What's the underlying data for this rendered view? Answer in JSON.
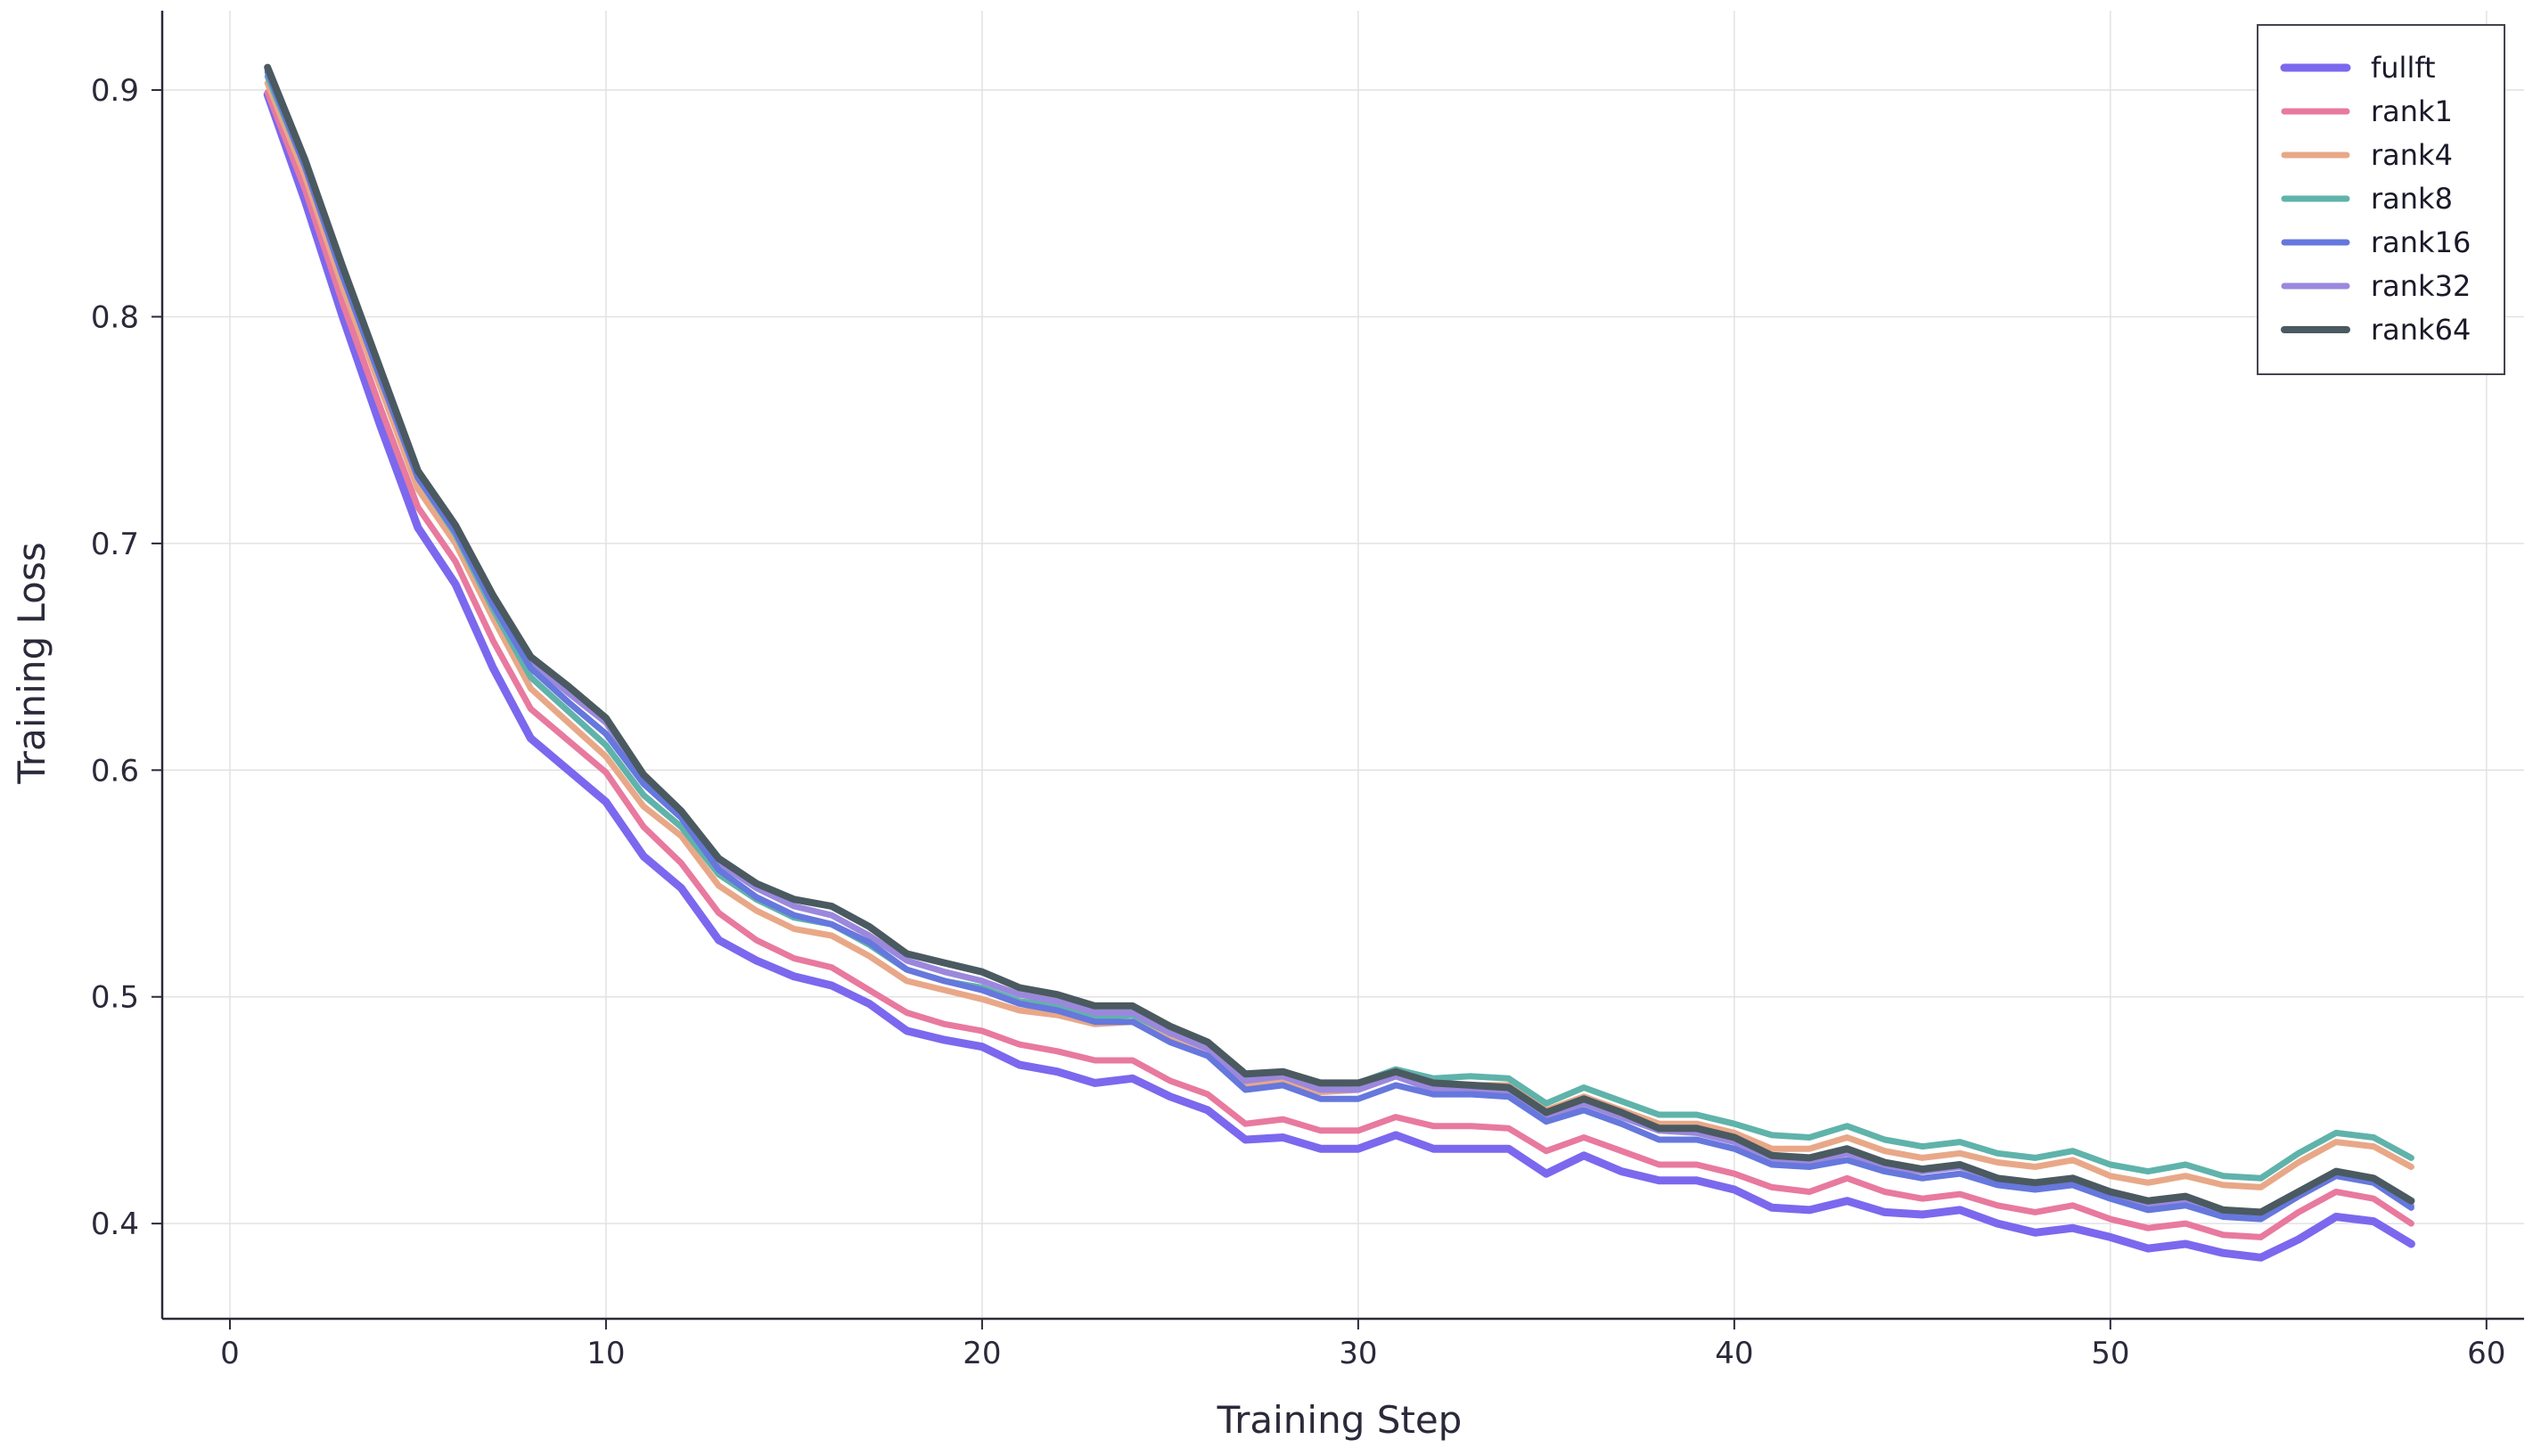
{
  "chart_data": {
    "type": "line",
    "title": "",
    "xlabel": "Training Step",
    "ylabel": "Training Loss",
    "xlim": [
      -1.8,
      61
    ],
    "ylim": [
      0.358,
      0.935
    ],
    "xticks": [
      0,
      10,
      20,
      30,
      40,
      50,
      60
    ],
    "yticks": [
      0.4,
      0.5,
      0.6,
      0.7,
      0.8,
      0.9
    ],
    "x": [
      1,
      2,
      3,
      4,
      5,
      6,
      7,
      8,
      9,
      10,
      11,
      12,
      13,
      14,
      15,
      16,
      17,
      18,
      19,
      20,
      21,
      22,
      23,
      24,
      25,
      26,
      27,
      28,
      29,
      30,
      31,
      32,
      33,
      34,
      35,
      36,
      37,
      38,
      39,
      40,
      41,
      42,
      43,
      44,
      45,
      46,
      47,
      48,
      49,
      50,
      51,
      52,
      53,
      54,
      55,
      56,
      57,
      58
    ],
    "grid": true,
    "legend_position": "top-right",
    "series": [
      {
        "name": "fullft",
        "color": "#7b68ee",
        "values": [
          0.898,
          0.851,
          0.8,
          0.752,
          0.707,
          0.682,
          0.645,
          0.614,
          0.6,
          0.586,
          0.562,
          0.548,
          0.525,
          0.516,
          0.509,
          0.505,
          0.497,
          0.485,
          0.481,
          0.478,
          0.47,
          0.467,
          0.462,
          0.464,
          0.456,
          0.45,
          0.437,
          0.438,
          0.433,
          0.433,
          0.439,
          0.433,
          0.433,
          0.433,
          0.422,
          0.43,
          0.423,
          0.419,
          0.419,
          0.415,
          0.407,
          0.406,
          0.41,
          0.405,
          0.404,
          0.406,
          0.4,
          0.396,
          0.398,
          0.394,
          0.389,
          0.391,
          0.387,
          0.385,
          0.393,
          0.403,
          0.401,
          0.391
        ]
      },
      {
        "name": "rank1",
        "color": "#e8799f",
        "values": [
          0.899,
          0.856,
          0.806,
          0.76,
          0.716,
          0.692,
          0.657,
          0.627,
          0.613,
          0.599,
          0.575,
          0.559,
          0.537,
          0.525,
          0.517,
          0.513,
          0.503,
          0.493,
          0.488,
          0.485,
          0.479,
          0.476,
          0.472,
          0.472,
          0.463,
          0.457,
          0.444,
          0.446,
          0.441,
          0.441,
          0.447,
          0.443,
          0.443,
          0.442,
          0.432,
          0.438,
          0.432,
          0.426,
          0.426,
          0.422,
          0.416,
          0.414,
          0.42,
          0.414,
          0.411,
          0.413,
          0.408,
          0.405,
          0.408,
          0.402,
          0.398,
          0.4,
          0.395,
          0.394,
          0.405,
          0.414,
          0.411,
          0.4
        ]
      },
      {
        "name": "rank4",
        "color": "#e8a888",
        "values": [
          0.903,
          0.862,
          0.813,
          0.769,
          0.724,
          0.7,
          0.667,
          0.636,
          0.621,
          0.606,
          0.584,
          0.571,
          0.549,
          0.538,
          0.53,
          0.527,
          0.518,
          0.507,
          0.503,
          0.499,
          0.494,
          0.492,
          0.488,
          0.489,
          0.481,
          0.474,
          0.461,
          0.463,
          0.458,
          0.459,
          0.465,
          0.46,
          0.461,
          0.461,
          0.45,
          0.456,
          0.45,
          0.444,
          0.444,
          0.44,
          0.433,
          0.433,
          0.438,
          0.432,
          0.429,
          0.431,
          0.427,
          0.425,
          0.428,
          0.421,
          0.418,
          0.421,
          0.417,
          0.416,
          0.427,
          0.436,
          0.434,
          0.425
        ]
      },
      {
        "name": "rank8",
        "color": "#5fb3aa",
        "values": [
          0.906,
          0.866,
          0.818,
          0.773,
          0.729,
          0.704,
          0.671,
          0.641,
          0.626,
          0.611,
          0.589,
          0.575,
          0.554,
          0.543,
          0.535,
          0.532,
          0.523,
          0.512,
          0.507,
          0.504,
          0.498,
          0.496,
          0.491,
          0.492,
          0.484,
          0.478,
          0.464,
          0.466,
          0.461,
          0.462,
          0.468,
          0.464,
          0.465,
          0.464,
          0.453,
          0.46,
          0.454,
          0.448,
          0.448,
          0.444,
          0.439,
          0.438,
          0.443,
          0.437,
          0.434,
          0.436,
          0.431,
          0.429,
          0.432,
          0.426,
          0.423,
          0.426,
          0.421,
          0.42,
          0.431,
          0.44,
          0.438,
          0.429
        ]
      },
      {
        "name": "rank16",
        "color": "#6677dd",
        "values": [
          0.908,
          0.866,
          0.818,
          0.773,
          0.729,
          0.705,
          0.673,
          0.645,
          0.63,
          0.616,
          0.594,
          0.579,
          0.556,
          0.544,
          0.536,
          0.532,
          0.524,
          0.512,
          0.507,
          0.503,
          0.497,
          0.494,
          0.489,
          0.489,
          0.48,
          0.474,
          0.459,
          0.461,
          0.455,
          0.455,
          0.461,
          0.457,
          0.457,
          0.456,
          0.445,
          0.45,
          0.444,
          0.437,
          0.437,
          0.433,
          0.426,
          0.425,
          0.428,
          0.423,
          0.42,
          0.422,
          0.417,
          0.415,
          0.417,
          0.411,
          0.406,
          0.408,
          0.403,
          0.402,
          0.412,
          0.421,
          0.418,
          0.407
        ]
      },
      {
        "name": "rank32",
        "color": "#9b88dd",
        "values": [
          0.909,
          0.868,
          0.821,
          0.776,
          0.731,
          0.707,
          0.675,
          0.648,
          0.634,
          0.621,
          0.597,
          0.581,
          0.559,
          0.548,
          0.54,
          0.536,
          0.527,
          0.516,
          0.511,
          0.507,
          0.501,
          0.498,
          0.493,
          0.493,
          0.484,
          0.477,
          0.463,
          0.465,
          0.459,
          0.459,
          0.465,
          0.459,
          0.459,
          0.458,
          0.447,
          0.453,
          0.447,
          0.441,
          0.44,
          0.436,
          0.428,
          0.427,
          0.431,
          0.425,
          0.423,
          0.425,
          0.419,
          0.417,
          0.419,
          0.412,
          0.408,
          0.41,
          0.405,
          0.404,
          0.414,
          0.422,
          0.419,
          0.408
        ]
      },
      {
        "name": "rank64",
        "color": "#4a5a60",
        "values": [
          0.91,
          0.869,
          0.822,
          0.777,
          0.732,
          0.708,
          0.677,
          0.65,
          0.637,
          0.623,
          0.598,
          0.582,
          0.561,
          0.55,
          0.543,
          0.54,
          0.531,
          0.519,
          0.515,
          0.511,
          0.504,
          0.501,
          0.496,
          0.496,
          0.487,
          0.48,
          0.466,
          0.467,
          0.462,
          0.462,
          0.467,
          0.462,
          0.461,
          0.46,
          0.449,
          0.455,
          0.449,
          0.442,
          0.442,
          0.438,
          0.43,
          0.429,
          0.433,
          0.427,
          0.424,
          0.426,
          0.42,
          0.418,
          0.42,
          0.414,
          0.41,
          0.412,
          0.406,
          0.405,
          0.414,
          0.423,
          0.42,
          0.41
        ]
      }
    ]
  }
}
